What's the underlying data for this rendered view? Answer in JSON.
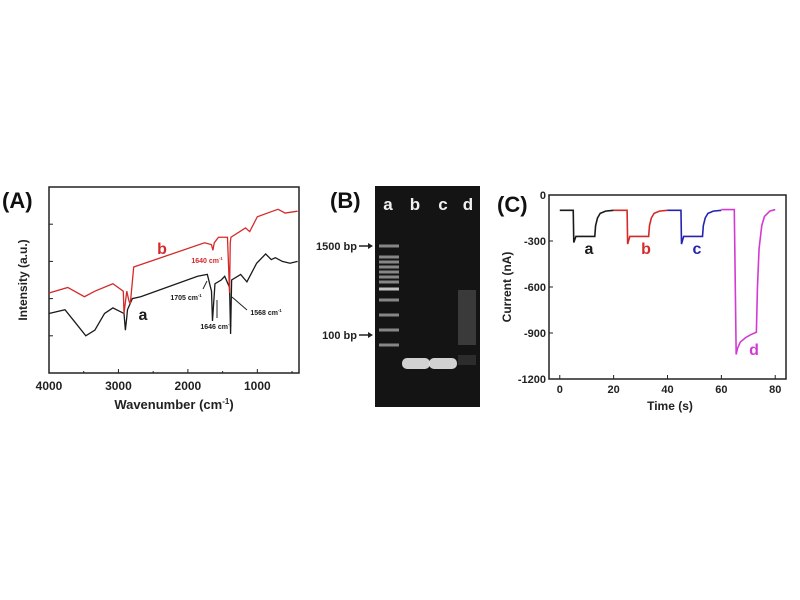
{
  "chart_data": [
    {
      "panel_label": "(A)",
      "type": "line",
      "xlabel": "Wavenumber (cm",
      "xlabel_sup": "-1",
      "xlabel_end": ")",
      "ylabel": "Intensity (a.u.)",
      "xlim": [
        4000,
        400
      ],
      "ylim": [
        0,
        10
      ],
      "xticks": [
        4000,
        3000,
        2000,
        1000
      ],
      "yticks_labeled": false,
      "series": [
        {
          "name": "a",
          "color": "#1a1a1a",
          "x": [
            4000,
            3770,
            3640,
            3470,
            3340,
            3200,
            3080,
            2920,
            2900,
            2880,
            2870,
            2800,
            2680,
            1860,
            1720,
            1660,
            1646,
            1610,
            1520,
            1470,
            1400,
            1385,
            1370,
            1240,
            1150,
            1010,
            880,
            800,
            740,
            640,
            530,
            420
          ],
          "y": [
            3.2,
            3.4,
            2.8,
            2.0,
            2.3,
            3.2,
            3.5,
            3.2,
            2.3,
            3.0,
            3.4,
            4.0,
            4.1,
            5.2,
            5.3,
            4.4,
            2.8,
            4.8,
            5.0,
            5.2,
            4.6,
            2.1,
            5.0,
            5.3,
            4.9,
            5.9,
            6.4,
            6.1,
            6.2,
            6.0,
            5.9,
            6.0
          ]
        },
        {
          "name": "b",
          "color": "#d42a2a",
          "x": [
            4000,
            3730,
            3490,
            3340,
            3080,
            2930,
            2920,
            2880,
            2850,
            2830,
            2780,
            1760,
            1660,
            1640,
            1620,
            1560,
            1430,
            1400,
            1390,
            1380,
            1170,
            1110,
            1000,
            780,
            700,
            600,
            420
          ],
          "y": [
            4.3,
            4.6,
            4.1,
            4.4,
            4.8,
            4.4,
            3.2,
            4.4,
            3.9,
            3.7,
            5.7,
            7.0,
            6.9,
            6.6,
            7.0,
            7.3,
            7.3,
            4.3,
            7.0,
            7.3,
            7.8,
            7.6,
            8.4,
            8.7,
            8.8,
            8.6,
            8.7
          ]
        }
      ],
      "annotations": [
        {
          "text": "b",
          "color": "#d42a2a"
        },
        {
          "text": "a",
          "color": "#1a1a1a"
        },
        {
          "text": "1640 cm",
          "sup": "-1",
          "color": "#d42a2a"
        },
        {
          "text": "1705 cm",
          "sup": "-1",
          "color": "#1a1a1a"
        },
        {
          "text": "1646 cm",
          "sup": "-1",
          "color": "#1a1a1a"
        },
        {
          "text": "1568 cm",
          "sup": "-1",
          "color": "#1a1a1a"
        }
      ]
    },
    {
      "panel_label": "(B)",
      "type": "gel",
      "lanes": [
        "a",
        "b",
        "c",
        "d"
      ],
      "markers": [
        {
          "text": "1500 bp"
        },
        {
          "text": "100 bp"
        }
      ]
    },
    {
      "panel_label": "(C)",
      "type": "line",
      "xlabel": "Time (s)",
      "ylabel": "Current (nA)",
      "xlim": [
        -4,
        84
      ],
      "ylim": [
        -1200,
        0
      ],
      "xticks": [
        0,
        20,
        40,
        60,
        80
      ],
      "yticks": [
        0,
        -300,
        -600,
        -900,
        -1200
      ],
      "series": [
        {
          "name": "a",
          "color": "#1a1a1a",
          "x": [
            0,
            5,
            5.2,
            6,
            13,
            13.3,
            14,
            15,
            17,
            20
          ],
          "y": [
            -100,
            -100,
            -310,
            -270,
            -270,
            -200,
            -150,
            -120,
            -105,
            -100
          ]
        },
        {
          "name": "b",
          "color": "#d42a2a",
          "x": [
            20,
            25,
            25.2,
            26,
            33,
            33.3,
            34,
            35,
            37,
            40
          ],
          "y": [
            -100,
            -100,
            -320,
            -270,
            -270,
            -200,
            -150,
            -120,
            -105,
            -100
          ]
        },
        {
          "name": "c",
          "color": "#2424b0",
          "x": [
            40,
            45,
            45.2,
            46,
            53,
            53.3,
            54,
            55,
            57,
            60
          ],
          "y": [
            -100,
            -100,
            -320,
            -270,
            -270,
            -200,
            -150,
            -120,
            -105,
            -100
          ]
        },
        {
          "name": "d",
          "color": "#d23ad2",
          "x": [
            60,
            64.8,
            65.5,
            66,
            67,
            69,
            71,
            73,
            73.4,
            74,
            75,
            76,
            78,
            80
          ],
          "y": [
            -95,
            -95,
            -1040,
            -1000,
            -960,
            -930,
            -910,
            -895,
            -600,
            -350,
            -200,
            -140,
            -105,
            -95
          ]
        }
      ]
    }
  ]
}
